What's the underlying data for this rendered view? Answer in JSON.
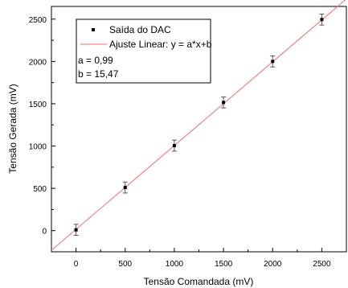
{
  "chart_data": {
    "type": "scatter",
    "xlabel": "Tensão Comandada (mV)",
    "ylabel": "Tensão Gerada (mV)",
    "xlim": [
      -250,
      2750
    ],
    "ylim": [
      -250,
      2650
    ],
    "x_ticks": [
      0,
      500,
      1000,
      1500,
      2000,
      2500
    ],
    "y_ticks": [
      0,
      500,
      1000,
      1500,
      2000,
      2500
    ],
    "x_tick_labels": [
      "0",
      "500",
      "1000",
      "1500",
      "2000",
      "2500"
    ],
    "y_tick_labels": [
      "0",
      "500",
      "1000",
      "1500",
      "2000",
      "2500"
    ],
    "series": [
      {
        "name": "Saída do DAC",
        "marker": "square",
        "color": "#000000",
        "x": [
          0,
          500,
          1000,
          1500,
          2000,
          2500
        ],
        "y": [
          10,
          510,
          1005,
          1515,
          2000,
          2495
        ],
        "error": [
          65,
          65,
          65,
          65,
          65,
          65
        ]
      },
      {
        "name": "Ajuste Linear: y = a*x+b",
        "kind": "line",
        "color": "#ff6a6a",
        "slope": 0.99,
        "intercept": 15.47
      }
    ],
    "annotations": [
      "a = 0,99",
      "b = 15,47"
    ],
    "legend_position": "top-left",
    "grid": false
  }
}
